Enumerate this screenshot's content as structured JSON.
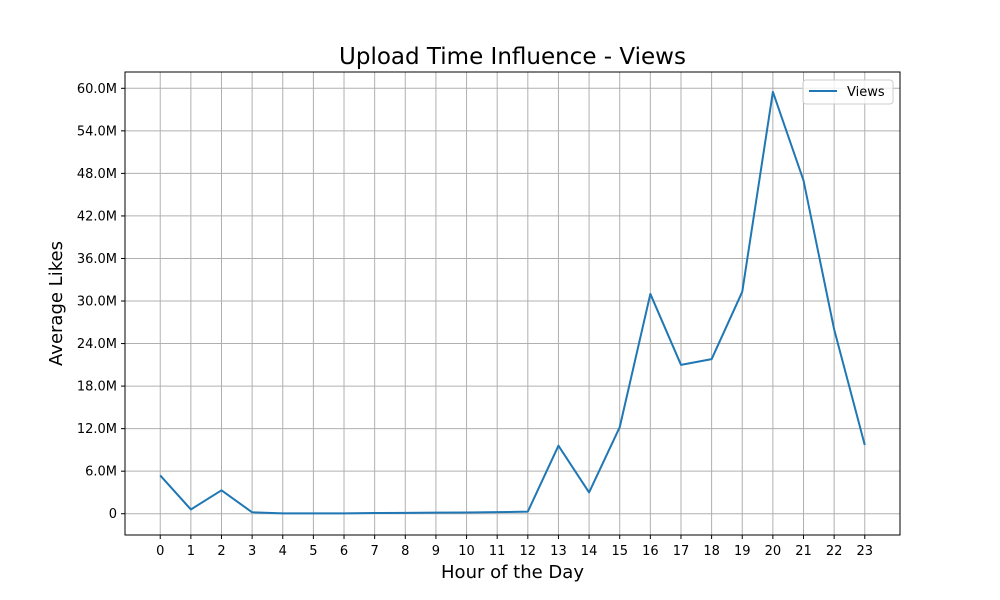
{
  "chart_data": {
    "type": "line",
    "title": "Upload Time Influence - Views",
    "xlabel": "Hour of the Day",
    "ylabel": "Average Likes",
    "x": [
      0,
      1,
      2,
      3,
      4,
      5,
      6,
      7,
      8,
      9,
      10,
      11,
      12,
      13,
      14,
      15,
      16,
      17,
      18,
      19,
      20,
      21,
      22,
      23
    ],
    "x_tick_labels": [
      "0",
      "1",
      "2",
      "3",
      "4",
      "5",
      "6",
      "7",
      "8",
      "9",
      "10",
      "11",
      "12",
      "13",
      "14",
      "15",
      "16",
      "17",
      "18",
      "19",
      "20",
      "21",
      "22",
      "23"
    ],
    "y_ticks": [
      0,
      6000000,
      12000000,
      18000000,
      24000000,
      30000000,
      36000000,
      42000000,
      48000000,
      54000000,
      60000000
    ],
    "y_tick_labels": [
      "0",
      "6.0M",
      "12.0M",
      "18.0M",
      "24.0M",
      "30.0M",
      "36.0M",
      "42.0M",
      "48.0M",
      "54.0M",
      "60.0M"
    ],
    "xlim": [
      -1.15,
      24.15
    ],
    "ylim": [
      -3000000,
      62300000
    ],
    "grid": true,
    "legend_placement": "top-right",
    "series": [
      {
        "name": "Views",
        "color": "#1f77b4",
        "values": [
          5400000,
          600000,
          3300000,
          200000,
          50000,
          50000,
          50000,
          100000,
          120000,
          150000,
          180000,
          220000,
          300000,
          9600000,
          3000000,
          12200000,
          31000000,
          21000000,
          21800000,
          31300000,
          59500000,
          47000000,
          26000000,
          9700000
        ]
      }
    ]
  }
}
